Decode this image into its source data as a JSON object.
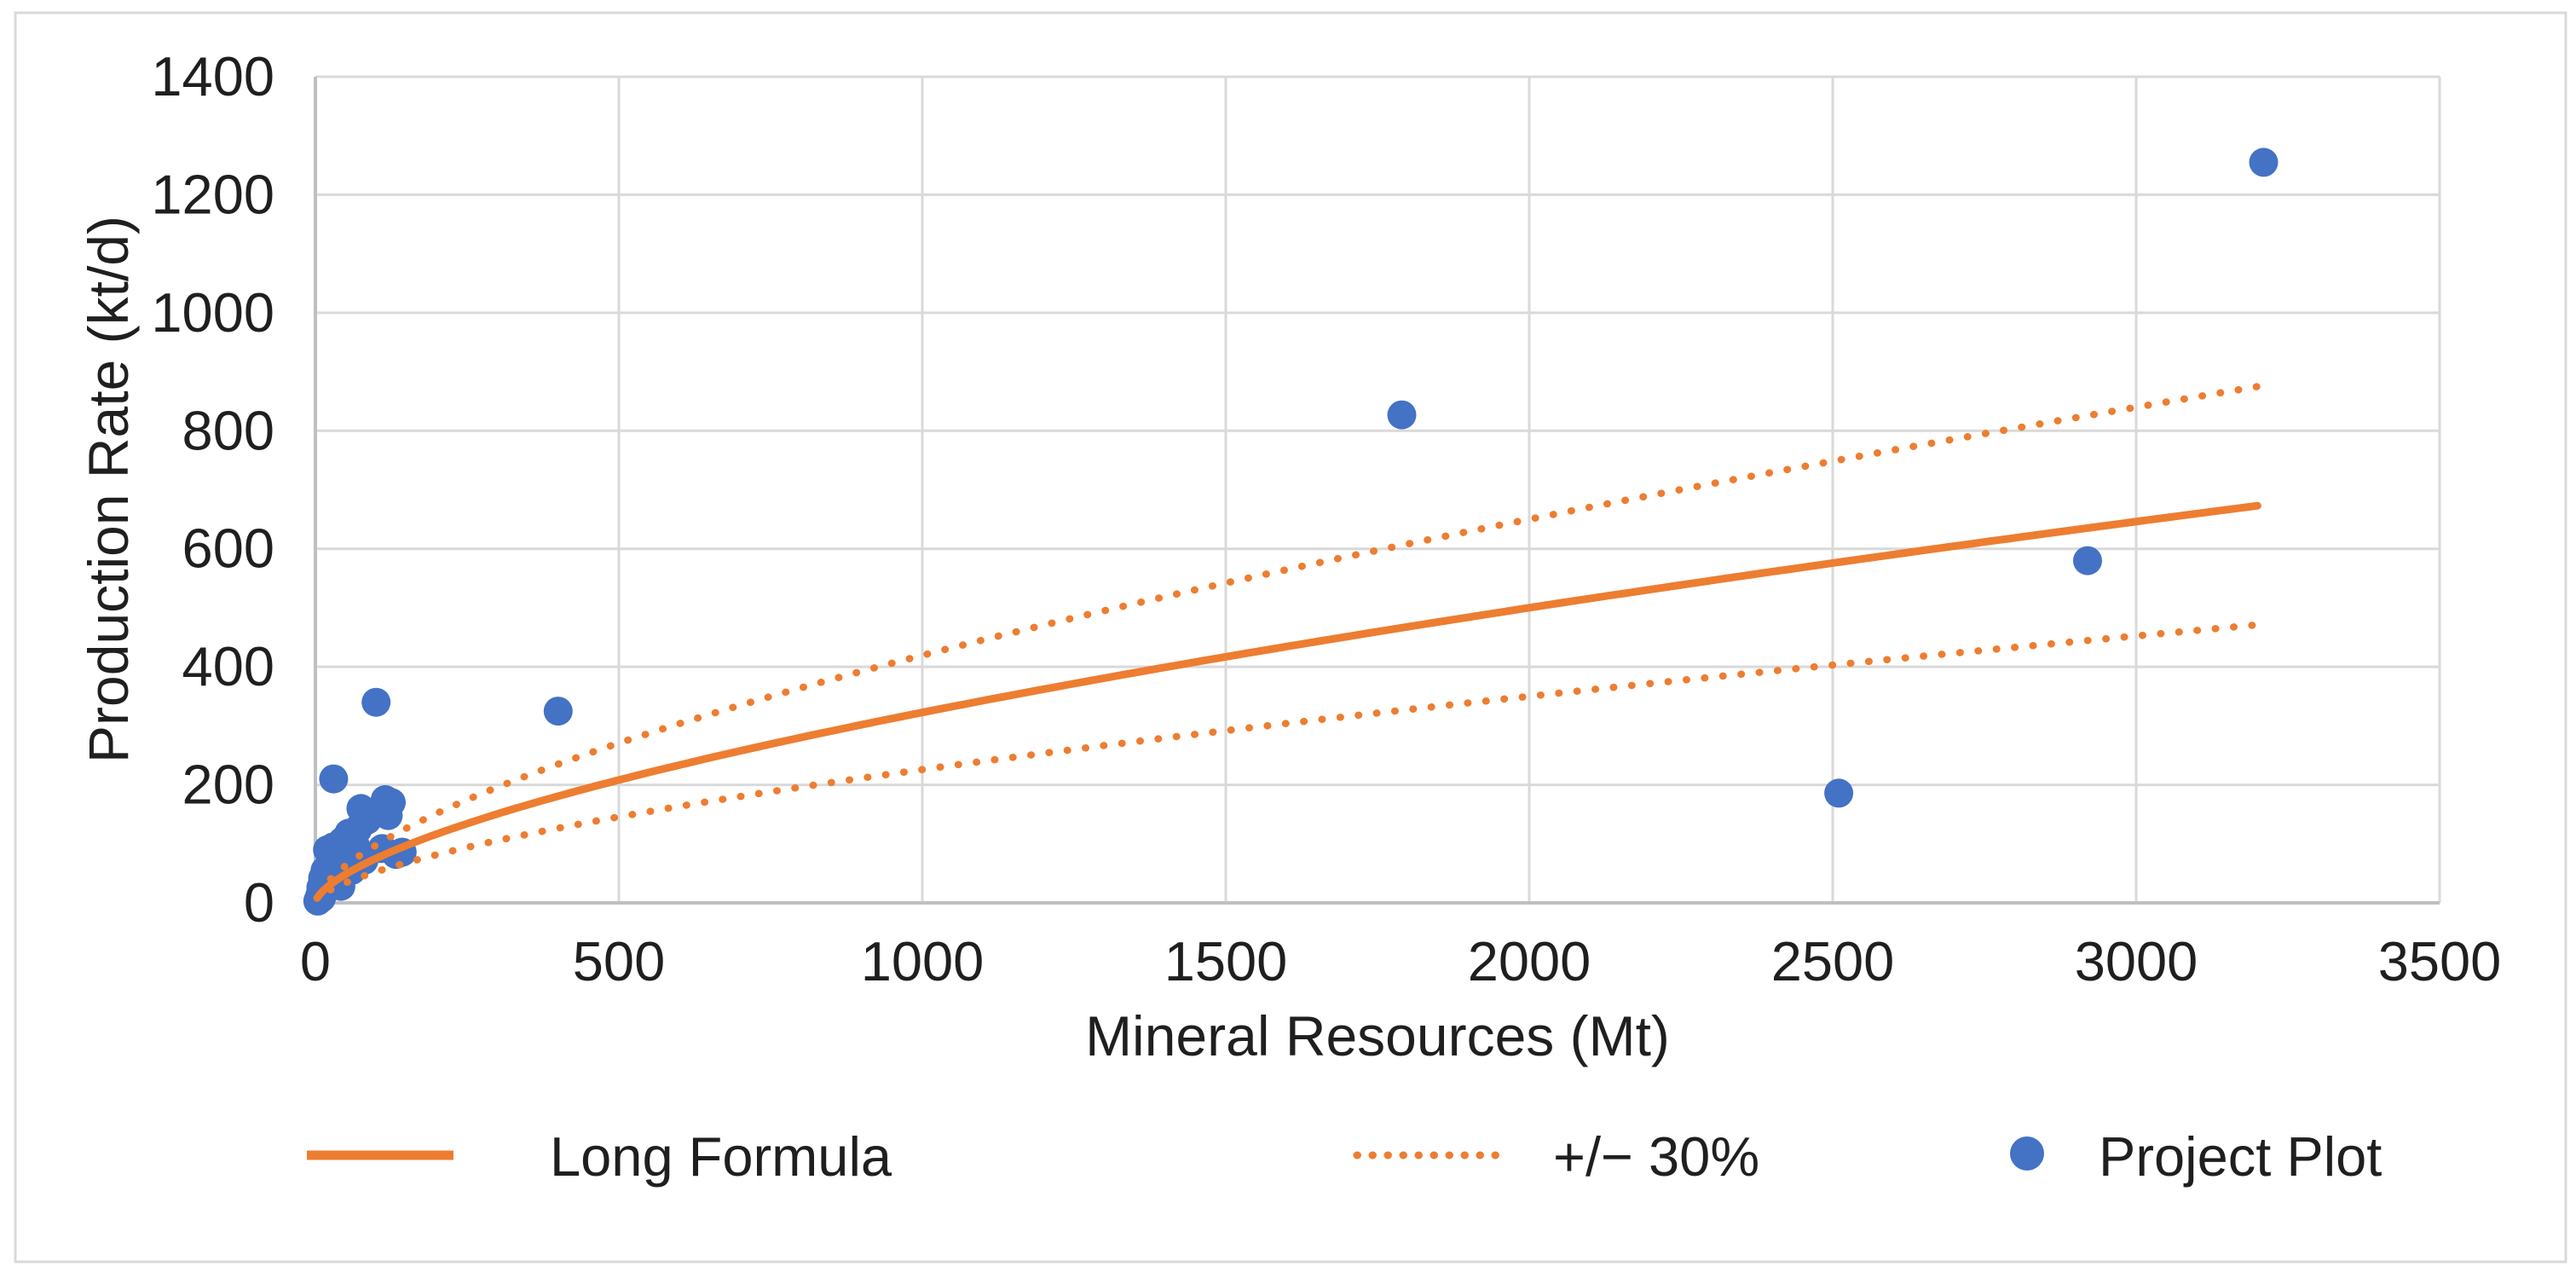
{
  "chart_data": {
    "type": "scatter",
    "title": "",
    "xlabel": "Mineral Resources (Mt)",
    "ylabel": "Production Rate (kt/d)",
    "xlim": [
      0,
      3500
    ],
    "ylim": [
      0,
      1400
    ],
    "x_ticks": [
      0,
      500,
      1000,
      1500,
      2000,
      2500,
      3000,
      3500
    ],
    "y_ticks": [
      0,
      200,
      400,
      600,
      800,
      1000,
      1200,
      1400
    ],
    "grid": true,
    "legend_position": "bottom",
    "background_color": "#FFFFFF",
    "grid_color": "#D9D9D9",
    "axis_color": "#BFBFBF",
    "border_color": "#D9D9D9",
    "text_color": "#1F1F1F",
    "series": [
      {
        "name": "Long Formula",
        "type": "line",
        "style": "solid",
        "color": "#ED7D31",
        "formula": "y = 4.1 * x^0.632",
        "power_a": 4.1,
        "power_b": 0.632,
        "x_start": 3,
        "x_end": 3200
      },
      {
        "name": "+/− 30%",
        "type": "band",
        "style": "dotted",
        "color": "#ED7D31",
        "power_a": 4.1,
        "power_b": 0.632,
        "multipliers": [
          1.3,
          0.7
        ],
        "x_start": 25,
        "x_end": 3200
      },
      {
        "name": "Project Plot",
        "type": "scatter",
        "color": "#4472C4",
        "marker_radius": 17,
        "points": [
          [
            4,
            3
          ],
          [
            7,
            12
          ],
          [
            9,
            26
          ],
          [
            10,
            8
          ],
          [
            12,
            42
          ],
          [
            14,
            18
          ],
          [
            16,
            55
          ],
          [
            18,
            35
          ],
          [
            20,
            90
          ],
          [
            22,
            28
          ],
          [
            25,
            62
          ],
          [
            27,
            88
          ],
          [
            30,
            95
          ],
          [
            30,
            210
          ],
          [
            34,
            70
          ],
          [
            38,
            45
          ],
          [
            42,
            28
          ],
          [
            45,
            105
          ],
          [
            50,
            80
          ],
          [
            55,
            118
          ],
          [
            60,
            55
          ],
          [
            65,
            100
          ],
          [
            70,
            125
          ],
          [
            75,
            160
          ],
          [
            80,
            72
          ],
          [
            85,
            140
          ],
          [
            95,
            150
          ],
          [
            100,
            340
          ],
          [
            110,
            92
          ],
          [
            115,
            175
          ],
          [
            120,
            148
          ],
          [
            125,
            170
          ],
          [
            133,
            82
          ],
          [
            143,
            86
          ],
          [
            400,
            325
          ],
          [
            1790,
            827
          ],
          [
            2510,
            186
          ],
          [
            2920,
            580
          ],
          [
            3210,
            1255
          ]
        ]
      }
    ]
  }
}
